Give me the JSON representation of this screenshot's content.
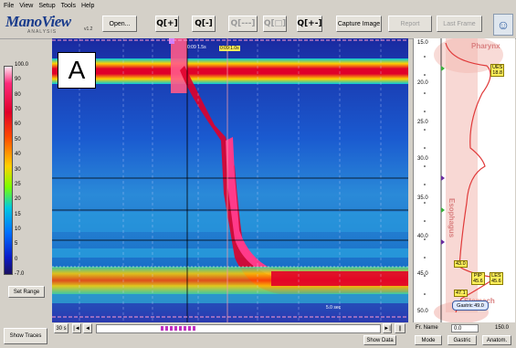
{
  "menu": [
    "File",
    "View",
    "Setup",
    "Tools",
    "Help"
  ],
  "logo": {
    "name": "ManoView",
    "sub": "ANALYSIS",
    "version": "v1.2"
  },
  "toolbar": {
    "open": "Open...",
    "capture": "Capture Image",
    "report": "Report",
    "last_frame": "Last Frame",
    "zoom_icons": [
      "Q[+]",
      "Q[-]",
      "Q[---]",
      "Q[□]",
      "Q[+-]"
    ]
  },
  "panel_label": "A",
  "colorbar": {
    "ticks": [
      "100.0",
      "90",
      "80",
      "70",
      "60",
      "50",
      "40",
      "30",
      "25",
      "20",
      "15",
      "10",
      "5",
      "0",
      "-7.0"
    ],
    "units": "mmHg"
  },
  "left_buttons": {
    "set_range": "Set Range",
    "show_traces": "Show Traces"
  },
  "plot": {
    "time_markers": [
      "0:09 1.5s",
      "0:09:1.0s"
    ],
    "scale_bar": "5.0 sec"
  },
  "bottom": {
    "speed": "30 s",
    "show_data": "Show Data"
  },
  "anatomy": {
    "top_label": "Pharynx",
    "mid_label": "Esophagus",
    "bottom_label": "Stomach",
    "depths": [
      "15.0",
      "20.0",
      "25.0",
      "30.0",
      "35.0",
      "40.0",
      "45.0",
      "50.0"
    ],
    "tags": {
      "ues": "UES\n18.8",
      "pip": "PIP\n45.6",
      "les": "LES\n45.6",
      "t1": "43.0",
      "t2": "47.1",
      "gastric": "Gastric 49.0"
    }
  },
  "right_bottom": {
    "fr_name_label": "Fr. Name",
    "fr_name_value": "0.0",
    "fr_name_end": "150.0",
    "mode": "Mode",
    "gastric": "Gastric",
    "anatom": "Anatom."
  },
  "colors": {
    "accent": "#1a3c8c",
    "pharynx": "#d98080",
    "pressure_high": "#e0002a",
    "pressure_low": "#1a2a8a"
  }
}
